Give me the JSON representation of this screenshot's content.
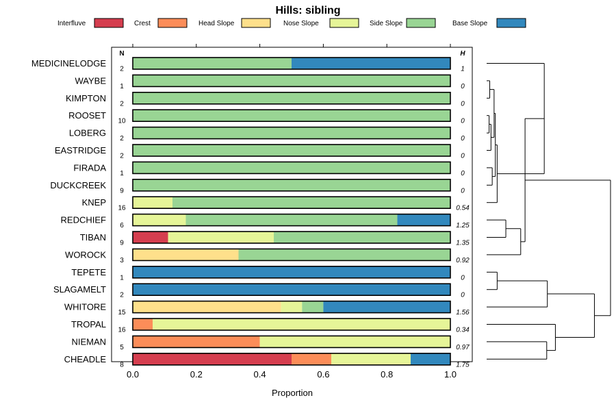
{
  "chart_data": {
    "type": "stacked-bar",
    "title": "Hills: sibling",
    "xlabel": "Proportion",
    "xlim": [
      0,
      1
    ],
    "xticks": [
      "0.0",
      "0.2",
      "0.4",
      "0.6",
      "0.8",
      "1.0"
    ],
    "n_header": "N",
    "h_header": "H",
    "legend": [
      {
        "name": "Interfluve",
        "color": "#D53E4F"
      },
      {
        "name": "Crest",
        "color": "#FC8D59"
      },
      {
        "name": "Head Slope",
        "color": "#FEE08B"
      },
      {
        "name": "Nose Slope",
        "color": "#E6F598"
      },
      {
        "name": "Side Slope",
        "color": "#99D594"
      },
      {
        "name": "Base Slope",
        "color": "#3288BD"
      }
    ],
    "rows": [
      {
        "label": "MEDICINELODGE",
        "n": "2",
        "h": "1",
        "values": [
          0,
          0,
          0,
          0,
          0.5,
          0.5
        ]
      },
      {
        "label": "WAYBE",
        "n": "1",
        "h": "0",
        "values": [
          0,
          0,
          0,
          0,
          1,
          0
        ]
      },
      {
        "label": "KIMPTON",
        "n": "2",
        "h": "0",
        "values": [
          0,
          0,
          0,
          0,
          1,
          0
        ]
      },
      {
        "label": "ROOSET",
        "n": "10",
        "h": "0",
        "values": [
          0,
          0,
          0,
          0,
          1,
          0
        ]
      },
      {
        "label": "LOBERG",
        "n": "2",
        "h": "0",
        "values": [
          0,
          0,
          0,
          0,
          1,
          0
        ]
      },
      {
        "label": "EASTRIDGE",
        "n": "2",
        "h": "0",
        "values": [
          0,
          0,
          0,
          0,
          1,
          0
        ]
      },
      {
        "label": "FIRADA",
        "n": "1",
        "h": "0",
        "values": [
          0,
          0,
          0,
          0,
          1,
          0
        ]
      },
      {
        "label": "DUCKCREEK",
        "n": "9",
        "h": "0",
        "values": [
          0,
          0,
          0,
          0,
          1,
          0
        ]
      },
      {
        "label": "KNEP",
        "n": "16",
        "h": "0.54",
        "values": [
          0,
          0,
          0,
          0.125,
          0.875,
          0
        ]
      },
      {
        "label": "REDCHIEF",
        "n": "6",
        "h": "1.25",
        "values": [
          0,
          0,
          0,
          0.167,
          0.666,
          0.167
        ]
      },
      {
        "label": "TIBAN",
        "n": "9",
        "h": "1.35",
        "values": [
          0.111,
          0,
          0,
          0.333,
          0.556,
          0
        ]
      },
      {
        "label": "WOROCK",
        "n": "3",
        "h": "0.92",
        "values": [
          0,
          0,
          0.333,
          0,
          0.667,
          0
        ]
      },
      {
        "label": "TEPETE",
        "n": "1",
        "h": "0",
        "values": [
          0,
          0,
          0,
          0,
          0,
          1
        ]
      },
      {
        "label": "SLAGAMELT",
        "n": "2",
        "h": "0",
        "values": [
          0,
          0,
          0,
          0,
          0,
          1
        ]
      },
      {
        "label": "WHITORE",
        "n": "15",
        "h": "1.56",
        "values": [
          0,
          0,
          0.467,
          0.066,
          0.067,
          0.4
        ]
      },
      {
        "label": "TROPAL",
        "n": "16",
        "h": "0.34",
        "values": [
          0,
          0.0625,
          0,
          0.9375,
          0,
          0
        ]
      },
      {
        "label": "NIEMAN",
        "n": "5",
        "h": "0.97",
        "values": [
          0,
          0.4,
          0,
          0.6,
          0,
          0
        ]
      },
      {
        "label": "CHEADLE",
        "n": "8",
        "h": "1.75",
        "values": [
          0.5,
          0.125,
          0,
          0.25,
          0,
          0.125
        ]
      }
    ],
    "dendrogram": {
      "leaf_order": [
        "MEDICINELODGE",
        "WAYBE",
        "KIMPTON",
        "ROOSET",
        "LOBERG",
        "EASTRIDGE",
        "FIRADA",
        "DUCKCREEK",
        "KNEP",
        "REDCHIEF",
        "TIBAN",
        "WOROCK",
        "TEPETE",
        "SLAGAMELT",
        "WHITORE",
        "TROPAL",
        "NIEMAN",
        "CHEADLE"
      ],
      "merges": [
        [
          1,
          2,
          0.05
        ],
        [
          3,
          4,
          0.04
        ],
        [
          19,
          5,
          0.07
        ],
        [
          6,
          7,
          0.09
        ],
        [
          18,
          20,
          0.12
        ],
        [
          22,
          21,
          0.14
        ],
        [
          23,
          8,
          0.17
        ],
        [
          0,
          24,
          0.93
        ],
        [
          9,
          10,
          0.31
        ],
        [
          26,
          11,
          0.55
        ],
        [
          25,
          27,
          0.62
        ],
        [
          12,
          13,
          0.17
        ],
        [
          29,
          14,
          0.98
        ],
        [
          16,
          17,
          0.97
        ],
        [
          15,
          31,
          1.11
        ],
        [
          30,
          32,
          1.74
        ],
        [
          28,
          33,
          2.0
        ]
      ],
      "max_height": 2.0
    }
  }
}
